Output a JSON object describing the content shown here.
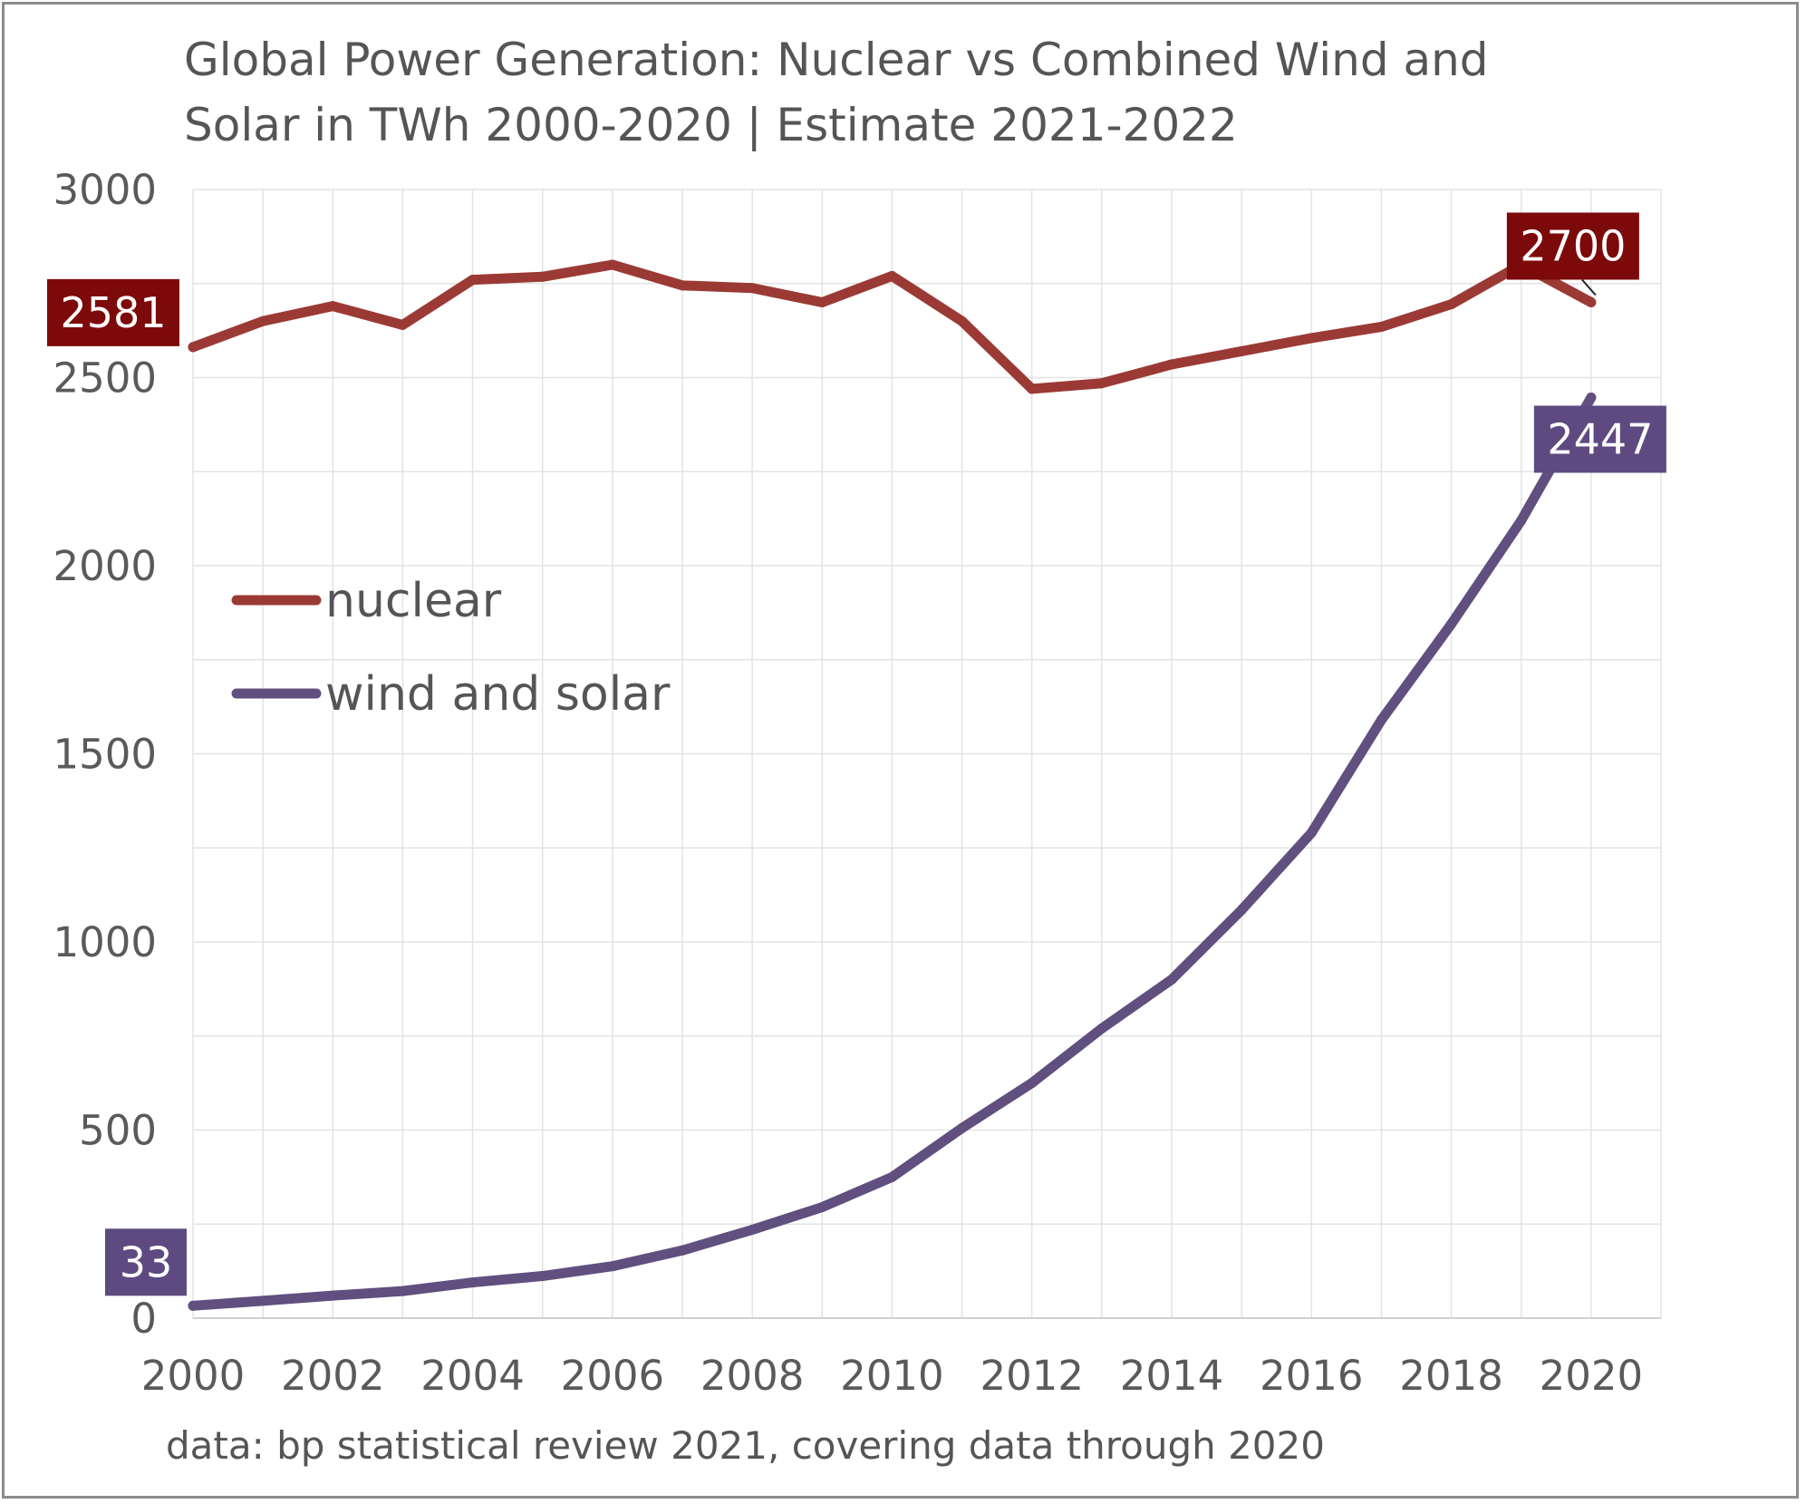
{
  "chart_data": {
    "type": "line",
    "title_lines": [
      "Global Power Generation: Nuclear vs Combined Wind and",
      "Solar in TWh 2000-2020 | Estimate 2021-2022"
    ],
    "source_note": "data: bp statistical review 2021, covering data through 2020",
    "x": [
      2000,
      2001,
      2002,
      2003,
      2004,
      2005,
      2006,
      2007,
      2008,
      2009,
      2010,
      2011,
      2012,
      2013,
      2014,
      2015,
      2016,
      2017,
      2018,
      2019,
      2020
    ],
    "x_tick_labels": [
      "2000",
      "2002",
      "2004",
      "2006",
      "2008",
      "2010",
      "2012",
      "2014",
      "2016",
      "2018",
      "2020"
    ],
    "y_tick_labels": [
      "0",
      "500",
      "1000",
      "1500",
      "2000",
      "2500",
      "3000"
    ],
    "xlim": [
      2000,
      2021
    ],
    "ylim": [
      0,
      3000
    ],
    "grid": true,
    "legend_position": "middle-left",
    "series": [
      {
        "name": "nuclear",
        "color": "#9b3a35",
        "values": [
          2581,
          2650,
          2690,
          2640,
          2760,
          2768,
          2800,
          2745,
          2738,
          2700,
          2770,
          2650,
          2470,
          2485,
          2535,
          2570,
          2605,
          2635,
          2695,
          2800,
          2700
        ],
        "labels": [
          {
            "index": 0,
            "text": "2581",
            "bg": "#7d0a0a"
          },
          {
            "index": 20,
            "text": "2700",
            "bg": "#7d0a0a"
          }
        ]
      },
      {
        "name": "wind and solar",
        "color": "#614f7f",
        "values": [
          33,
          46,
          60,
          72,
          95,
          112,
          138,
          180,
          235,
          295,
          375,
          505,
          625,
          770,
          900,
          1085,
          1290,
          1590,
          1845,
          2120,
          2447
        ],
        "labels": [
          {
            "index": 0,
            "text": "33",
            "bg": "#5e4a80"
          },
          {
            "index": 20,
            "text": "2447",
            "bg": "#5e4a80"
          }
        ]
      }
    ]
  }
}
